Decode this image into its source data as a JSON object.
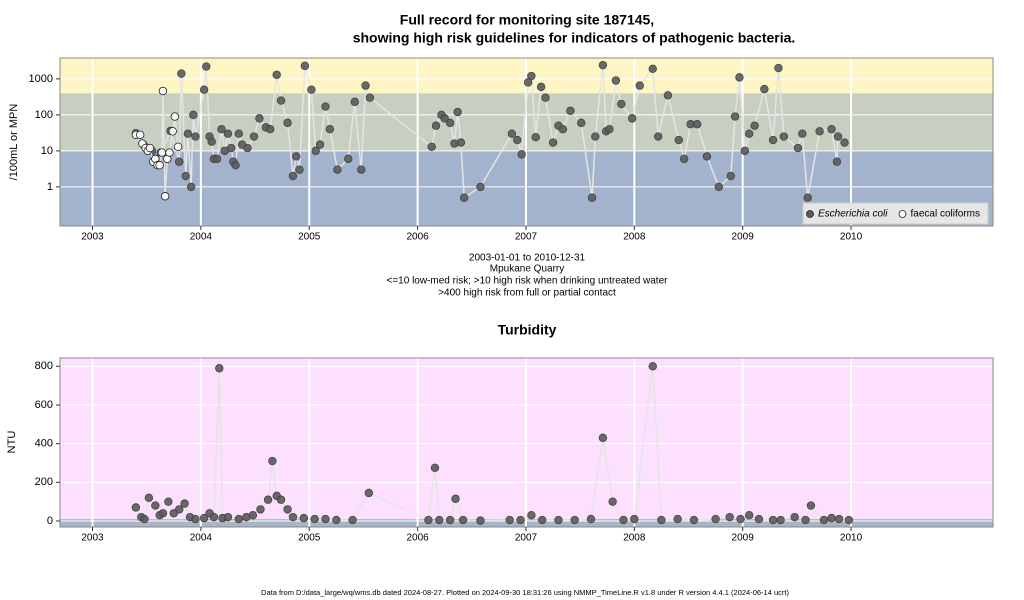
{
  "chart_data": [
    {
      "type": "scatter",
      "title": [
        "Full record for monitoring site 187145,",
        "showing high risk guidelines for indicators of pathogenic bacteria."
      ],
      "caption": [
        "2003-01-01 to 2010-12-31",
        "Mpukane Quarry",
        "<=10 low-med risk; >10 high risk when drinking untreated water",
        ">400 high risk from full or partial contact"
      ],
      "ylabel": "/100mL or MPN",
      "log_scale": true,
      "grid": true,
      "legend": "bottom-right",
      "xlim": [
        2002.7,
        2011.31
      ],
      "xticks": [
        2003,
        2004,
        2005,
        2006,
        2007,
        2008,
        2009,
        2010
      ],
      "ylim": [
        0.082,
        3800
      ],
      "yticks": [
        1,
        10,
        100,
        1000
      ],
      "thresholds": [
        10,
        400
      ],
      "band_colors": [
        "#a3b3cd",
        "#c6cfc0",
        "#fdf6c4"
      ],
      "series": [
        {
          "name": "Escherichia coli",
          "color": "#5a5a5a",
          "x": [
            2003.4,
            2003.47,
            2003.55,
            2003.63,
            2003.72,
            2003.8,
            2003.82,
            2003.86,
            2003.88,
            2003.91,
            2003.93,
            2003.95,
            2004.03,
            2004.05,
            2004.08,
            2004.1,
            2004.12,
            2004.15,
            2004.19,
            2004.22,
            2004.25,
            2004.28,
            2004.3,
            2004.32,
            2004.35,
            2004.38,
            2004.43,
            2004.49,
            2004.54,
            2004.6,
            2004.64,
            2004.7,
            2004.74,
            2004.8,
            2004.85,
            2004.88,
            2004.91,
            2004.96,
            2005.02,
            2005.06,
            2005.1,
            2005.15,
            2005.19,
            2005.26,
            2005.36,
            2005.42,
            2005.48,
            2005.52,
            2005.56,
            2006.13,
            2006.17,
            2006.22,
            2006.25,
            2006.3,
            2006.34,
            2006.37,
            2006.4,
            2006.43,
            2006.58,
            2006.87,
            2006.92,
            2006.96,
            2007.02,
            2007.05,
            2007.09,
            2007.14,
            2007.18,
            2007.25,
            2007.3,
            2007.34,
            2007.41,
            2007.51,
            2007.61,
            2007.64,
            2007.71,
            2007.74,
            2007.77,
            2007.83,
            2007.88,
            2007.98,
            2008.05,
            2008.17,
            2008.22,
            2008.31,
            2008.41,
            2008.46,
            2008.52,
            2008.58,
            2008.67,
            2008.78,
            2008.89,
            2008.93,
            2008.97,
            2009.02,
            2009.06,
            2009.11,
            2009.2,
            2009.28,
            2009.33,
            2009.38,
            2009.51,
            2009.55,
            2009.6,
            2009.71,
            2009.82,
            2009.87,
            2009.88,
            2009.94
          ],
          "values": [
            31,
            15,
            10,
            9,
            36,
            5,
            1400,
            2,
            30,
            1,
            100,
            25,
            500,
            2200,
            25,
            18,
            6,
            6,
            40,
            10,
            30,
            12,
            5,
            4,
            30,
            15,
            12,
            25,
            80,
            45,
            40,
            1300,
            250,
            60,
            2,
            7,
            3,
            2300,
            500,
            10,
            15,
            170,
            40,
            3,
            6,
            230,
            3,
            650,
            300,
            13,
            50,
            100,
            80,
            60,
            16,
            120,
            17,
            0.5,
            1,
            30,
            20,
            8,
            800,
            1200,
            24,
            600,
            300,
            17,
            50,
            40,
            130,
            60,
            0.5,
            25,
            2400,
            35,
            40,
            900,
            200,
            80,
            650,
            1900,
            25,
            350,
            20,
            6,
            55,
            55,
            7,
            1,
            2,
            90,
            1100,
            10,
            30,
            50,
            520,
            20,
            2000,
            25,
            12,
            30,
            0.5,
            35,
            40,
            5,
            25,
            17
          ]
        },
        {
          "name": "faecal coliforms",
          "color": "#ffffff",
          "x": [
            2003.4,
            2003.44,
            2003.46,
            2003.49,
            2003.51,
            2003.53,
            2003.56,
            2003.58,
            2003.6,
            2003.62,
            2003.64,
            2003.65,
            2003.67,
            2003.69,
            2003.71,
            2003.74,
            2003.76,
            2003.79
          ],
          "values": [
            28,
            28,
            16,
            12,
            10,
            12,
            5,
            6,
            4,
            4,
            9,
            460,
            0.55,
            6,
            9,
            35,
            90,
            13
          ]
        }
      ]
    },
    {
      "type": "scatter",
      "title": "Turbidity",
      "ylabel": "NTU",
      "grid": true,
      "xlim": [
        2002.7,
        2011.31
      ],
      "xticks": [
        2003,
        2004,
        2005,
        2006,
        2007,
        2008,
        2009,
        2010
      ],
      "ylim": [
        -31,
        843
      ],
      "yticks": [
        0,
        200,
        400,
        600,
        800
      ],
      "thresholds": [
        10
      ],
      "band_colors": [
        "#a9b4c6",
        "#fde0fd"
      ],
      "series": [
        {
          "color": "#5a5a5a",
          "x": [
            2003.4,
            2003.45,
            2003.48,
            2003.52,
            2003.58,
            2003.62,
            2003.65,
            2003.7,
            2003.75,
            2003.8,
            2003.85,
            2003.9,
            2003.95,
            2004.03,
            2004.08,
            2004.12,
            2004.17,
            2004.2,
            2004.25,
            2004.35,
            2004.42,
            2004.48,
            2004.55,
            2004.62,
            2004.66,
            2004.7,
            2004.74,
            2004.8,
            2004.85,
            2004.95,
            2005.05,
            2005.15,
            2005.25,
            2005.4,
            2005.55,
            2006.1,
            2006.16,
            2006.2,
            2006.3,
            2006.35,
            2006.42,
            2006.58,
            2006.85,
            2006.95,
            2007.05,
            2007.15,
            2007.3,
            2007.45,
            2007.6,
            2007.71,
            2007.8,
            2007.9,
            2008.0,
            2008.17,
            2008.25,
            2008.4,
            2008.55,
            2008.75,
            2008.88,
            2008.98,
            2009.06,
            2009.15,
            2009.28,
            2009.35,
            2009.48,
            2009.58,
            2009.63,
            2009.75,
            2009.82,
            2009.89,
            2009.98
          ],
          "values": [
            70,
            20,
            10,
            120,
            80,
            30,
            40,
            100,
            40,
            60,
            90,
            20,
            10,
            15,
            40,
            20,
            790,
            15,
            20,
            10,
            20,
            30,
            60,
            110,
            310,
            130,
            110,
            60,
            20,
            15,
            10,
            10,
            5,
            5,
            145,
            5,
            275,
            5,
            5,
            115,
            5,
            2,
            5,
            5,
            30,
            5,
            5,
            5,
            10,
            430,
            100,
            5,
            10,
            800,
            5,
            10,
            5,
            10,
            20,
            10,
            30,
            10,
            5,
            5,
            20,
            5,
            80,
            5,
            15,
            10,
            5
          ]
        }
      ]
    }
  ],
  "footer": "Data from D:/data_large/wq/wms.db dated 2024-08-27. Plotted on 2024-09-30 18:31:26 using NMMP_TimeLine.R v1.8 under R version 4.4.1 (2024-06-14 ucrt)"
}
